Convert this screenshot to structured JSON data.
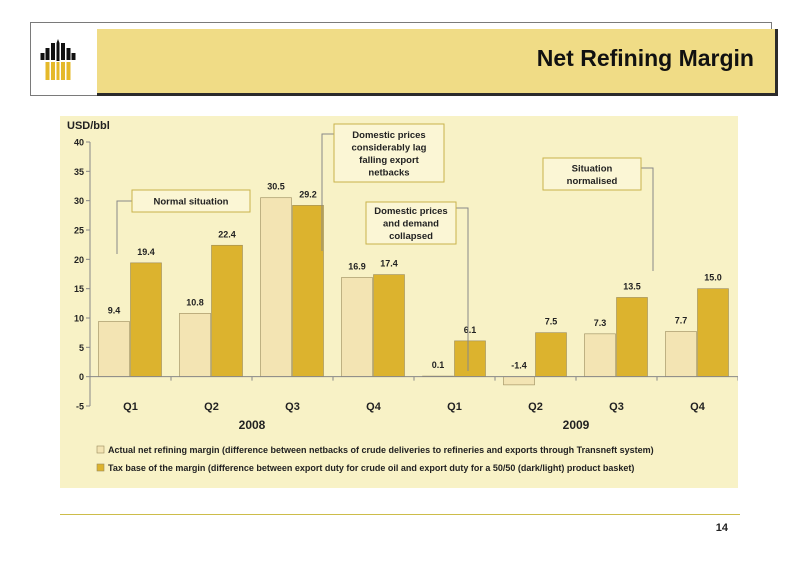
{
  "header": {
    "title": "Net Refining Margin"
  },
  "chart_data": {
    "type": "bar",
    "ylabel": "USD/bbl",
    "ylim": [
      -5,
      40
    ],
    "yticks": [
      -5,
      0,
      5,
      10,
      15,
      20,
      25,
      30,
      35,
      40
    ],
    "categories": [
      "Q1",
      "Q2",
      "Q3",
      "Q4",
      "Q1",
      "Q2",
      "Q3",
      "Q4"
    ],
    "groups": [
      {
        "label": "2008",
        "from": 0,
        "to": 3
      },
      {
        "label": "2009",
        "from": 4,
        "to": 7
      }
    ],
    "series": [
      {
        "name": "Actual net refining margin (difference between netbacks of crude deliveries to refineries and exports through Transneft system)",
        "color": "#f3e4b3",
        "values": [
          9.4,
          10.8,
          30.5,
          16.9,
          0.1,
          -1.4,
          7.3,
          7.7
        ],
        "labels": [
          "9.4",
          "10.8",
          "30.5",
          "16.9",
          "0.1",
          "-1.4",
          "7.3",
          "7.7"
        ]
      },
      {
        "name": "Tax base of the margin (difference between export duty for crude oil and export duty for a 50/50 (dark/light) product basket)",
        "color": "#dcb32e",
        "values": [
          19.4,
          22.4,
          29.2,
          17.4,
          6.1,
          7.5,
          13.5,
          15.0
        ],
        "labels": [
          "19.4",
          "22.4",
          "29.2",
          "17.4",
          "6.1",
          "7.5",
          "13.5",
          "15.0"
        ]
      }
    ],
    "annotations": [
      {
        "lines": [
          "Normal situation"
        ]
      },
      {
        "lines": [
          "Domestic prices",
          "considerably lag",
          "falling export",
          "netbacks"
        ]
      },
      {
        "lines": [
          "Domestic prices",
          "and demand",
          "collapsed"
        ]
      },
      {
        "lines": [
          "Situation",
          "normalised"
        ]
      }
    ],
    "legend_position": "bottom"
  },
  "footer": {
    "page_number": "14"
  }
}
